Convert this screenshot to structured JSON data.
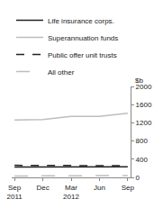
{
  "chart_data": {
    "type": "line",
    "ylabel": "$b",
    "categories": [
      "Sep 2011",
      "Dec",
      "Mar 2012",
      "Jun",
      "Sep"
    ],
    "series": [
      {
        "name": "Life insurance corps.",
        "color": "#222222",
        "line_style": "solid",
        "values": [
          230,
          230,
          240,
          240,
          235
        ]
      },
      {
        "name": "Superannuation funds",
        "color": "#bdbdbd",
        "line_style": "solid",
        "values": [
          1260,
          1270,
          1340,
          1340,
          1410
        ]
      },
      {
        "name": "Public offer unit trusts",
        "color": "#222222",
        "line_style": "dash",
        "values": [
          265,
          260,
          265,
          260,
          255
        ]
      },
      {
        "name": "All other",
        "color": "#bdbdbd",
        "line_style": "longdash",
        "values": [
          30,
          30,
          35,
          40,
          40
        ]
      }
    ],
    "ylim": [
      0,
      2000
    ],
    "yticks": [
      0,
      400,
      800,
      1200,
      1600,
      2000
    ],
    "grid": false,
    "legend": "top-left"
  }
}
